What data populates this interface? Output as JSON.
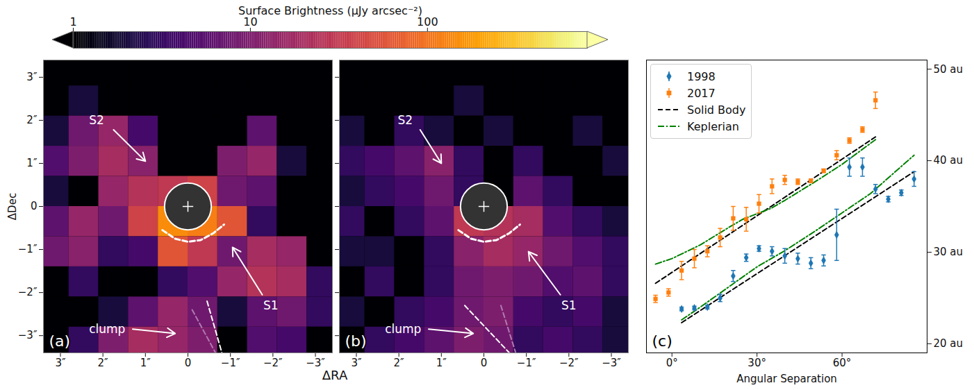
{
  "colorbar": {
    "label": "Surface Brightness (μJy arcsec⁻²)",
    "range": [
      1,
      800
    ],
    "ticks": [
      1,
      10,
      100
    ],
    "log": true
  },
  "chart_data": [
    {
      "type": "heatmap",
      "panel": "(a)",
      "x_label": "ΔRA",
      "y_label": "ΔDec",
      "xlim": [
        3.4,
        -3.4
      ],
      "ylim": [
        -3.4,
        3.4
      ],
      "xticks": [
        {
          "value": 3,
          "label": "3″"
        },
        {
          "value": 2,
          "label": "2″"
        },
        {
          "value": 1,
          "label": "1″"
        },
        0,
        {
          "value": -1,
          "label": "−1″"
        },
        {
          "value": -2,
          "label": "−2″"
        },
        {
          "value": -3,
          "label": "−3″"
        }
      ],
      "yticks": [
        {
          "value": 3,
          "label": "3″"
        },
        {
          "value": 2,
          "label": "2″"
        },
        {
          "value": 1,
          "label": "1″"
        },
        0,
        {
          "value": -1,
          "label": "−1″"
        },
        {
          "value": -2,
          "label": "−2″"
        },
        {
          "value": -3,
          "label": "−3″"
        }
      ],
      "cells": {
        "x": [
          3.15,
          2.45,
          1.75,
          1.05,
          0.35,
          -0.35,
          -1.05,
          -1.75,
          -2.45,
          -3.15
        ],
        "y": [
          3.15,
          2.45,
          1.75,
          1.05,
          0.35,
          -0.35,
          -1.05,
          -1.75,
          -2.45,
          -3.15
        ],
        "values": [
          [
            0.5,
            0.5,
            0.5,
            0.5,
            0.5,
            0.5,
            0.5,
            0.5,
            0.5,
            0.5
          ],
          [
            0.5,
            2,
            0.5,
            0.5,
            0.5,
            0.5,
            0.5,
            0.5,
            0.5,
            0.5
          ],
          [
            2,
            8,
            15,
            4,
            0.5,
            0.5,
            0.5,
            6,
            0.5,
            0.5
          ],
          [
            5,
            10,
            20,
            12,
            0.5,
            0.5,
            10,
            15,
            2,
            0.5
          ],
          [
            2,
            0.5,
            15,
            25,
            30,
            40,
            8,
            6,
            0.5,
            0.5
          ],
          [
            6,
            15,
            8,
            40,
            150,
            120,
            60,
            3,
            0.5,
            0.5
          ],
          [
            8,
            12,
            3,
            4,
            60,
            30,
            8,
            20,
            15,
            0.5
          ],
          [
            0.5,
            3,
            0.5,
            0.5,
            3,
            5,
            15,
            25,
            20,
            3
          ],
          [
            0.5,
            0.5,
            2,
            6,
            15,
            8,
            2,
            6,
            8,
            3
          ],
          [
            0.5,
            3,
            10,
            20,
            15,
            10,
            0.5,
            5,
            4,
            0.5
          ]
        ]
      },
      "mask": {
        "x": 0,
        "y": 0,
        "radius": 0.55
      },
      "arc": {
        "x": [
          0.6,
          0.3,
          0,
          -0.3,
          -0.6,
          -0.85
        ],
        "y": [
          -0.55,
          -0.75,
          -0.82,
          -0.78,
          -0.62,
          -0.42
        ],
        "color": "white",
        "line_style": "dashed"
      },
      "lines": [
        {
          "x": [
            -0.45,
            -0.8
          ],
          "y": [
            -2.2,
            -3.4
          ],
          "color": "white",
          "line_style": "dashed"
        },
        {
          "x": [
            -0.1,
            -0.65
          ],
          "y": [
            -2.4,
            -3.4
          ],
          "color": "#b07ab0",
          "line_style": "dashed"
        }
      ],
      "annotations": [
        {
          "text": "S2",
          "x": 2.15,
          "y": 2.0,
          "arrow_from": [
            1.75,
            1.78
          ],
          "arrow_to": [
            1.0,
            1.05
          ]
        },
        {
          "text": "S1",
          "x": -1.95,
          "y": -2.3,
          "arrow_from": [
            -1.75,
            -2.05
          ],
          "arrow_to": [
            -1.05,
            -0.95
          ]
        },
        {
          "text": "clump",
          "x": 1.9,
          "y": -2.85,
          "arrow_from": [
            1.3,
            -2.85
          ],
          "arrow_to": [
            0.3,
            -2.95
          ]
        }
      ]
    },
    {
      "type": "heatmap",
      "panel": "(b)",
      "tick_labels": "x",
      "xlim": [
        3.4,
        -3.4
      ],
      "ylim": [
        -3.4,
        3.4
      ],
      "xticks": [
        {
          "value": 3,
          "label": "3″"
        },
        {
          "value": 2,
          "label": "2″"
        },
        {
          "value": 1,
          "label": "1″"
        },
        0,
        {
          "value": -1,
          "label": "−1″"
        },
        {
          "value": -2,
          "label": "−2″"
        },
        {
          "value": -3,
          "label": "−3″"
        }
      ],
      "yticks": [
        3,
        2,
        1,
        0,
        -1,
        -2,
        -3
      ],
      "cells": {
        "x": [
          3.15,
          2.45,
          1.75,
          1.05,
          0.35,
          -0.35,
          -1.05,
          -1.75,
          -2.45,
          -3.15
        ],
        "y": [
          3.15,
          2.45,
          1.75,
          1.05,
          0.35,
          -0.35,
          -1.05,
          -1.75,
          -2.45,
          -3.15
        ],
        "values": [
          [
            0.5,
            0.5,
            0.5,
            0.5,
            0.5,
            0.5,
            0.5,
            0.5,
            0.5,
            0.5
          ],
          [
            0.5,
            0.5,
            0.5,
            0.5,
            2,
            0.5,
            0.5,
            0.5,
            0.5,
            0.5
          ],
          [
            2,
            0.5,
            3,
            2,
            0.5,
            2,
            0.5,
            0.5,
            2,
            0.5
          ],
          [
            3,
            4,
            6,
            12,
            3,
            0.5,
            3,
            0.5,
            0.5,
            2
          ],
          [
            2,
            3,
            4,
            8,
            3,
            0.5,
            6,
            3,
            0.5,
            0.5
          ],
          [
            3,
            0.5,
            3,
            6,
            30,
            25,
            20,
            5,
            3,
            2
          ],
          [
            2,
            2,
            0.5,
            3,
            12,
            20,
            15,
            8,
            5,
            3
          ],
          [
            0.5,
            3,
            0.5,
            3,
            8,
            10,
            8,
            5,
            6,
            3
          ],
          [
            2,
            0.5,
            3,
            4,
            8,
            10,
            4,
            3,
            4,
            2
          ],
          [
            0.5,
            3,
            4,
            6,
            10,
            8,
            3,
            4,
            3,
            2
          ]
        ]
      },
      "mask": {
        "x": 0,
        "y": 0,
        "radius": 0.55
      },
      "arc": {
        "x": [
          0.6,
          0.3,
          0,
          -0.3,
          -0.6,
          -0.85
        ],
        "y": [
          -0.55,
          -0.75,
          -0.82,
          -0.78,
          -0.62,
          -0.42
        ],
        "color": "white",
        "line_style": "dashed"
      },
      "lines": [
        {
          "x": [
            0.45,
            -0.6
          ],
          "y": [
            -2.3,
            -3.4
          ],
          "color": "white",
          "line_style": "dashed"
        },
        {
          "x": [
            -0.4,
            -0.75
          ],
          "y": [
            -2.3,
            -3.4
          ],
          "color": "#b07ab0",
          "line_style": "dashed"
        }
      ],
      "annotations": [
        {
          "text": "S2",
          "x": 1.85,
          "y": 2.0,
          "arrow_from": [
            1.5,
            1.78
          ],
          "arrow_to": [
            1.0,
            1.0
          ]
        },
        {
          "text": "S1",
          "x": -2.0,
          "y": -2.3,
          "arrow_from": [
            -1.8,
            -2.05
          ],
          "arrow_to": [
            -1.05,
            -1.05
          ]
        },
        {
          "text": "clump",
          "x": 1.9,
          "y": -2.85,
          "arrow_from": [
            1.3,
            -2.85
          ],
          "arrow_to": [
            0.25,
            -2.95
          ]
        }
      ]
    },
    {
      "type": "scatter",
      "panel": "(c)",
      "x_label": "Angular Separation",
      "xlim": [
        -9,
        90
      ],
      "xticks": [
        {
          "value": 0,
          "label": "0°"
        },
        {
          "value": 30,
          "label": "30°"
        },
        {
          "value": 60,
          "label": "60°"
        }
      ],
      "ylim": [
        19,
        51
      ],
      "yticks": [
        {
          "value": 20,
          "label": "20 au"
        },
        {
          "value": 30,
          "label": "30 au"
        },
        {
          "value": 40,
          "label": "40 au"
        },
        {
          "value": 50,
          "label": "50 au"
        }
      ],
      "legend": "upper left",
      "series": [
        {
          "name": "1998",
          "type": "scatter",
          "color": "#1f77b4",
          "marker": "diamond",
          "x": [
            3.4,
            7.9,
            12.5,
            17.0,
            21.6,
            26.2,
            30.7,
            35.3,
            39.8,
            44.4,
            49.0,
            53.5,
            58.1,
            62.6,
            67.2,
            71.8,
            76.3,
            80.9,
            85.4
          ],
          "values": [
            23.8,
            23.9,
            24.0,
            25.0,
            27.4,
            29.4,
            30.4,
            30.1,
            29.6,
            29.3,
            28.8,
            29.1,
            31.9,
            39.3,
            39.3,
            36.9,
            35.8,
            36.5,
            38.0
          ],
          "errors": [
            0.2,
            0.2,
            0.2,
            0.4,
            0.6,
            0.4,
            0.3,
            0.5,
            0.8,
            0.6,
            0.6,
            0.6,
            2.8,
            1.0,
            1.0,
            0.5,
            0.3,
            0.3,
            0.8
          ]
        },
        {
          "name": "2017",
          "type": "scatter",
          "color": "#ff7f0e",
          "marker": "square",
          "x": [
            -5.8,
            -1.2,
            3.4,
            7.9,
            12.5,
            17.0,
            21.6,
            26.2,
            30.7,
            35.3,
            39.8,
            44.4,
            49.0,
            53.5,
            58.1,
            62.6,
            67.2,
            71.8
          ],
          "values": [
            24.9,
            25.6,
            28.0,
            29.3,
            30.1,
            31.6,
            33.7,
            33.6,
            35.3,
            37.2,
            37.9,
            37.7,
            37.8,
            38.9,
            40.6,
            42.2,
            43.4,
            46.6
          ],
          "errors": [
            0.4,
            0.4,
            1.0,
            1.0,
            0.6,
            1.0,
            1.3,
            1.3,
            1.0,
            0.8,
            0.5,
            0.3,
            0.2,
            0.2,
            0.5,
            0.3,
            0.3,
            0.9
          ]
        },
        {
          "name": "Solid Body",
          "type": "line",
          "color": "black",
          "line_style": "dashed",
          "segments": [
            {
              "x": [
                -5.8,
                71.8
              ],
              "values": [
                26.6,
                42.6
              ]
            },
            {
              "x": [
                3.4,
                85.4
              ],
              "values": [
                22.3,
                38.8
              ]
            }
          ]
        },
        {
          "name": "Keplerian",
          "type": "line",
          "color": "green",
          "line_style": "dashdot",
          "segments": [
            {
              "x": [
                -5.8,
                0,
                10,
                20,
                25,
                30,
                35,
                40,
                50,
                60,
                71.8
              ],
              "values": [
                28.7,
                29.3,
                30.8,
                32.7,
                33.6,
                34.2,
                34.8,
                35.7,
                37.6,
                39.6,
                42.3
              ]
            },
            {
              "x": [
                3.4,
                10,
                20,
                30,
                40,
                50,
                60,
                70,
                85.4
              ],
              "values": [
                22.6,
                24.0,
                26.2,
                28.4,
                30.2,
                32.2,
                34.3,
                36.4,
                40.6
              ]
            }
          ]
        }
      ]
    }
  ]
}
